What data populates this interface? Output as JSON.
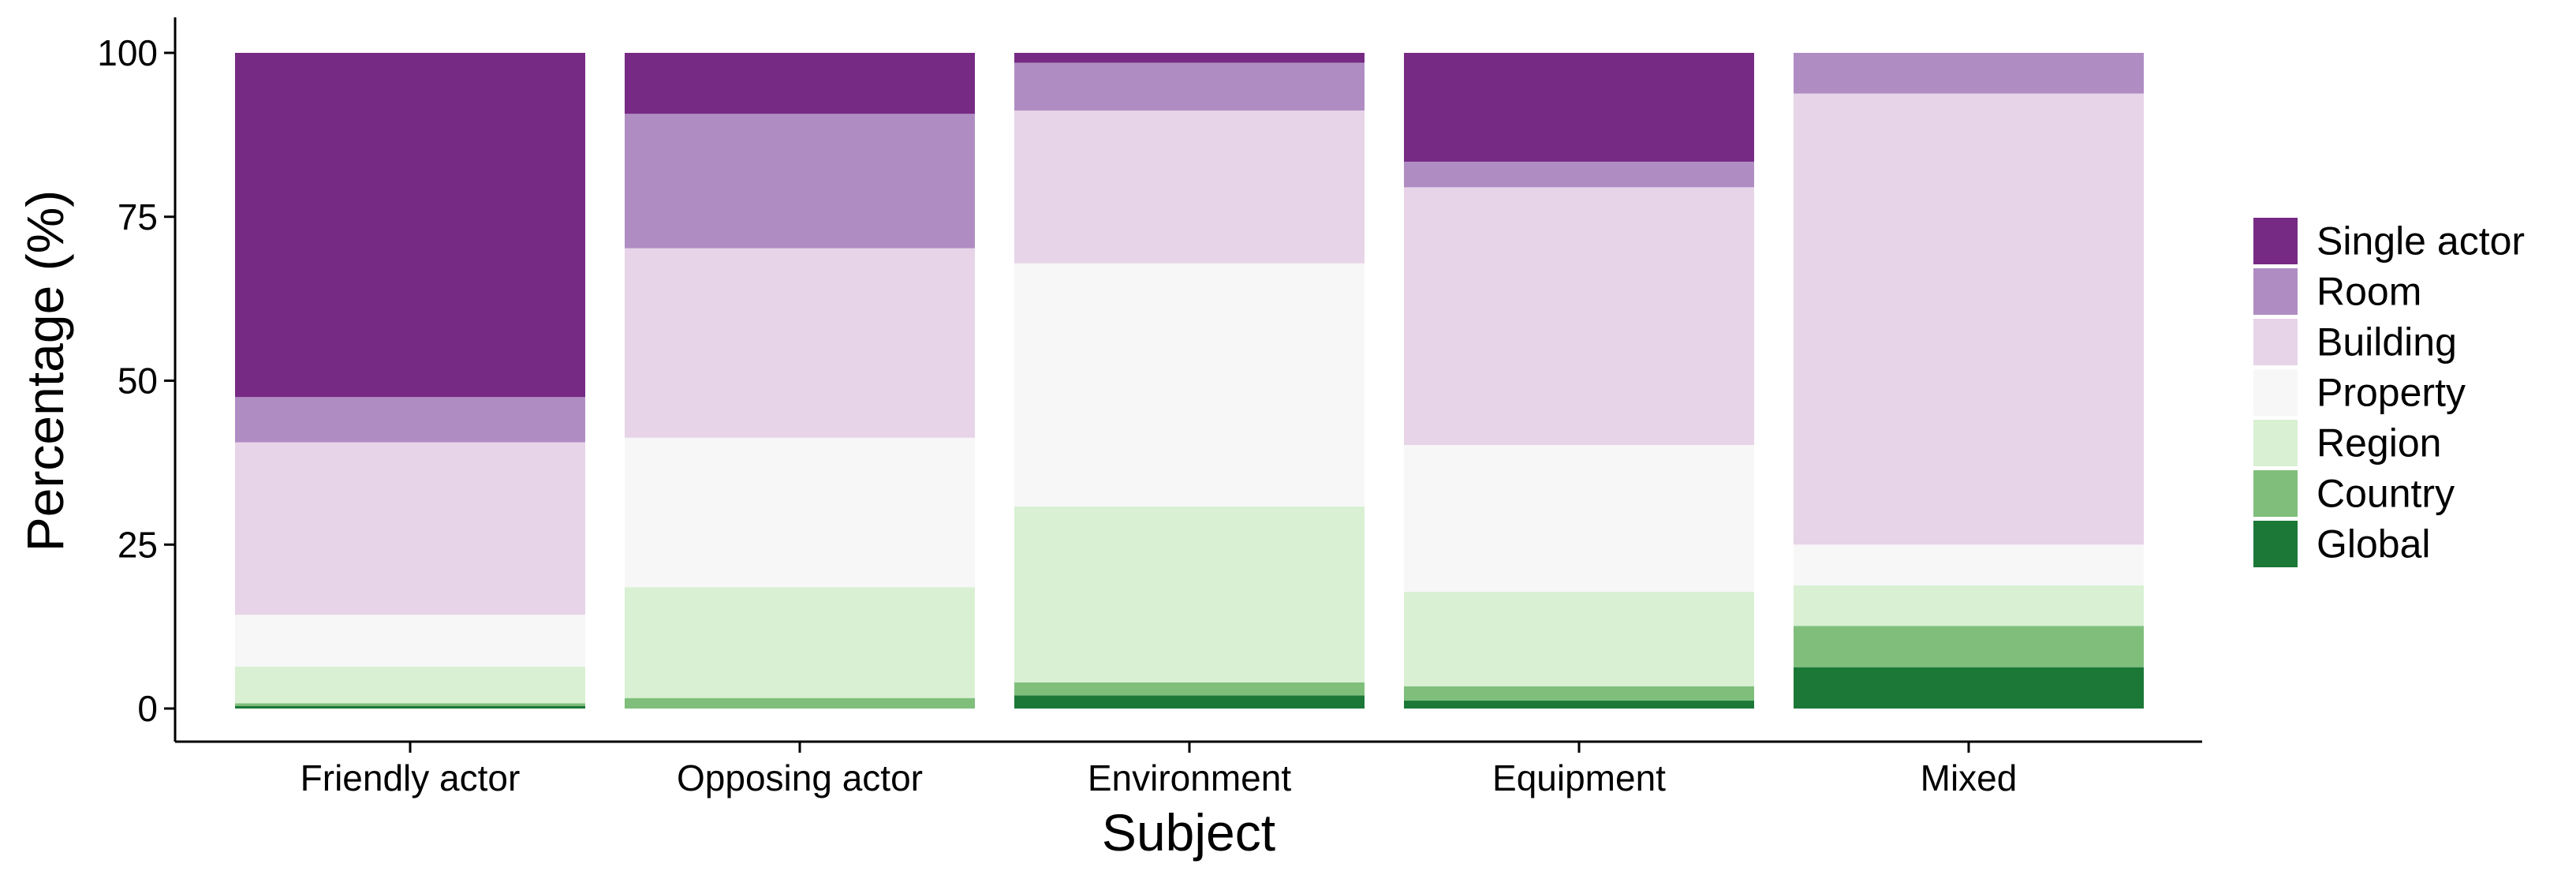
{
  "chart_data": {
    "type": "bar",
    "stacked": true,
    "title": "",
    "xlabel": "Subject",
    "ylabel": "Percentage (%)",
    "ylim": [
      0,
      100
    ],
    "yticks": [
      0,
      25,
      50,
      75,
      100
    ],
    "grid": false,
    "legend_position": "right",
    "categories": [
      "Friendly actor",
      "Opposing actor",
      "Environment",
      "Equipment",
      "Mixed"
    ],
    "series": [
      {
        "name": "Global",
        "color": "#1b7837",
        "values": [
          0.4,
          0.0,
          2.0,
          1.2,
          6.3
        ]
      },
      {
        "name": "Country",
        "color": "#7fbf7b",
        "values": [
          0.4,
          1.6,
          2.0,
          2.2,
          6.3
        ]
      },
      {
        "name": "Region",
        "color": "#d9f0d3",
        "values": [
          5.6,
          16.9,
          26.8,
          14.4,
          6.2
        ]
      },
      {
        "name": "Property",
        "color": "#f7f7f7",
        "values": [
          7.9,
          22.8,
          37.1,
          22.4,
          6.2
        ]
      },
      {
        "name": "Building",
        "color": "#e7d4e8",
        "values": [
          26.3,
          28.9,
          23.3,
          39.3,
          68.8
        ]
      },
      {
        "name": "Room",
        "color": "#af8dc3",
        "values": [
          6.9,
          20.5,
          7.3,
          3.9,
          6.2
        ]
      },
      {
        "name": "Single actor",
        "color": "#762a83",
        "values": [
          52.5,
          9.3,
          1.5,
          16.6,
          0.0
        ]
      }
    ],
    "legend_order": [
      "Single actor",
      "Room",
      "Building",
      "Property",
      "Region",
      "Country",
      "Global"
    ]
  }
}
